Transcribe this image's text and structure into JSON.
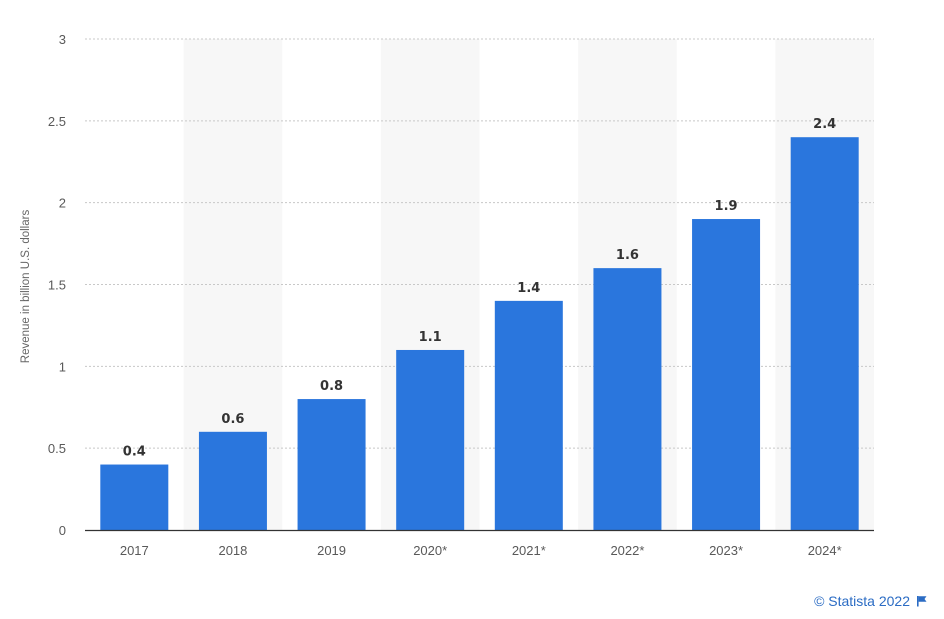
{
  "chart_data": {
    "type": "bar",
    "categories": [
      "2017",
      "2018",
      "2019",
      "2020*",
      "2021*",
      "2022*",
      "2023*",
      "2024*"
    ],
    "values": [
      0.4,
      0.6,
      0.8,
      1.1,
      1.4,
      1.6,
      1.9,
      2.4
    ],
    "value_labels": [
      "0.4",
      "0.6",
      "0.8",
      "1.1",
      "1.4",
      "1.6",
      "1.9",
      "2.4"
    ],
    "title": "",
    "xlabel": "",
    "ylabel": "Revenue in billion U.S. dollars",
    "ylim": [
      0,
      3
    ],
    "yticks": [
      0,
      0.5,
      1,
      1.5,
      2,
      2.5,
      3
    ],
    "ytick_labels": [
      "0",
      "0.5",
      "1",
      "1.5",
      "2",
      "2.5",
      "3"
    ],
    "grid": true,
    "legend": "none",
    "bar_color": "#2a76dd",
    "band_color": "#f7f7f7"
  },
  "credit": {
    "text": "© Statista 2022",
    "icon": "flag-icon",
    "color": "#2b6cc4"
  }
}
